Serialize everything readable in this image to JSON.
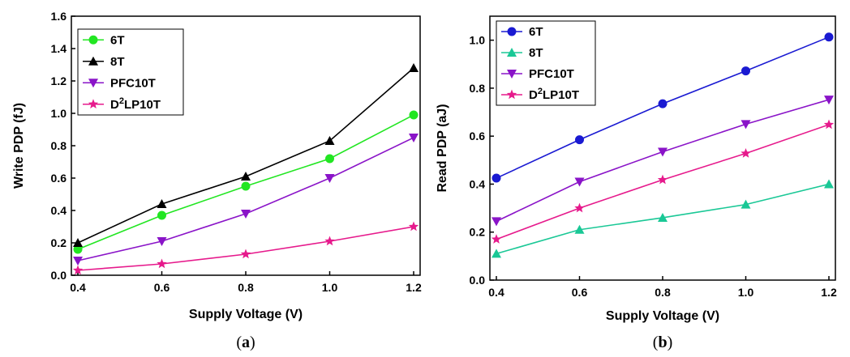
{
  "chart_data": [
    {
      "type": "line",
      "panel_label": "a",
      "xlabel": "Supply Voltage (V)",
      "ylabel": "Write PDP (fJ)",
      "xlim": [
        0.4,
        1.2
      ],
      "ylim": [
        0.0,
        1.6
      ],
      "xticks": [
        "0.4",
        "0.6",
        "0.8",
        "1.0",
        "1.2"
      ],
      "yticks": [
        "0.0",
        "0.2",
        "0.4",
        "0.6",
        "0.8",
        "1.0",
        "1.2",
        "1.4",
        "1.6"
      ],
      "x": [
        0.4,
        0.6,
        0.8,
        1.0,
        1.2
      ],
      "legend_position": "top-left",
      "grid": false,
      "series": [
        {
          "name": "6T",
          "name_main": "6T",
          "name_sup": "",
          "name_rest": "",
          "color": "#22e622",
          "marker": "circle",
          "values": [
            0.16,
            0.37,
            0.55,
            0.72,
            0.99
          ]
        },
        {
          "name": "8T",
          "name_main": "8T",
          "name_sup": "",
          "name_rest": "",
          "color": "#000000",
          "marker": "triangle-up",
          "values": [
            0.2,
            0.44,
            0.61,
            0.83,
            1.28
          ]
        },
        {
          "name": "PFC10T",
          "name_main": "PFC10T",
          "name_sup": "",
          "name_rest": "",
          "color": "#8a14c8",
          "marker": "triangle-down",
          "values": [
            0.09,
            0.21,
            0.38,
            0.6,
            0.85
          ]
        },
        {
          "name": "D2LP10T",
          "name_main": "D",
          "name_sup": "2",
          "name_rest": "LP10T",
          "color": "#e61a8c",
          "marker": "star",
          "values": [
            0.03,
            0.07,
            0.13,
            0.21,
            0.3
          ]
        }
      ]
    },
    {
      "type": "line",
      "panel_label": "b",
      "xlabel": "Supply Voltage (V)",
      "ylabel": "Read PDP (aJ)",
      "xlim": [
        0.4,
        1.2
      ],
      "ylim": [
        0.0,
        1.1
      ],
      "xticks": [
        "0.4",
        "0.6",
        "0.8",
        "1.0",
        "1.2"
      ],
      "yticks": [
        "0.0",
        "0.2",
        "0.4",
        "0.6",
        "0.8",
        "1.0"
      ],
      "x": [
        0.4,
        0.6,
        0.8,
        1.0,
        1.2
      ],
      "legend_position": "top-left",
      "grid": false,
      "series": [
        {
          "name": "6T",
          "name_main": "6T",
          "name_sup": "",
          "name_rest": "",
          "color": "#1a1ad2",
          "marker": "circle",
          "values": [
            0.425,
            0.585,
            0.735,
            0.872,
            1.013
          ]
        },
        {
          "name": "8T",
          "name_main": "8T",
          "name_sup": "",
          "name_rest": "",
          "color": "#1ac896",
          "marker": "triangle-up",
          "values": [
            0.11,
            0.21,
            0.26,
            0.315,
            0.4
          ]
        },
        {
          "name": "PFC10T",
          "name_main": "PFC10T",
          "name_sup": "",
          "name_rest": "",
          "color": "#8a14c8",
          "marker": "triangle-down",
          "values": [
            0.245,
            0.41,
            0.535,
            0.65,
            0.752
          ]
        },
        {
          "name": "D2LP10T",
          "name_main": "D",
          "name_sup": "2",
          "name_rest": "LP10T",
          "color": "#e61a8c",
          "marker": "star",
          "values": [
            0.17,
            0.3,
            0.418,
            0.528,
            0.648
          ]
        }
      ]
    }
  ]
}
